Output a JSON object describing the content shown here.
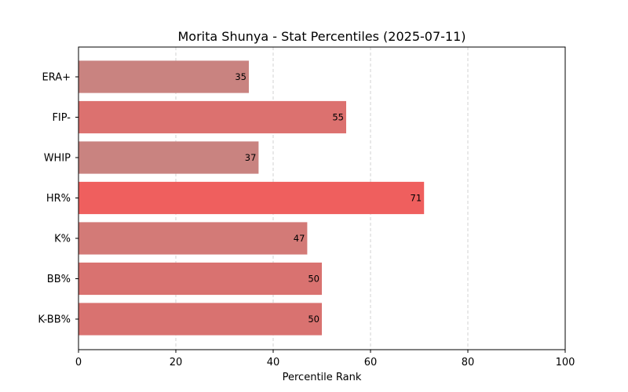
{
  "chart_data": {
    "type": "bar",
    "orientation": "horizontal",
    "title": "Morita Shunya - Stat Percentiles (2025-07-11)",
    "xlabel": "Percentile Rank",
    "ylabel": "",
    "xlim": [
      0,
      100
    ],
    "xticks": [
      0,
      20,
      40,
      60,
      80,
      100
    ],
    "grid": "x-dashed",
    "categories": [
      "ERA+",
      "FIP-",
      "WHIP",
      "HR%",
      "K%",
      "BB%",
      "K-BB%"
    ],
    "values": [
      35,
      55,
      37,
      71,
      47,
      50,
      50
    ],
    "colors": [
      "#c98380",
      "#dc716f",
      "#c98380",
      "#ef5f5e",
      "#d37a77",
      "#d97270",
      "#d97270"
    ]
  }
}
